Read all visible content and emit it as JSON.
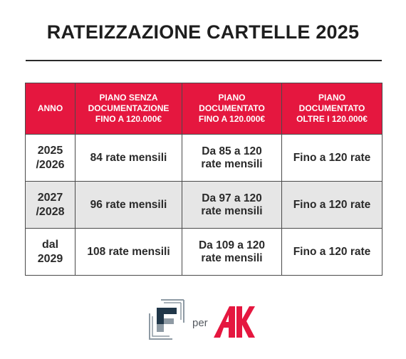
{
  "title": "RATEIZZAZIONE CARTELLE 2025",
  "colors": {
    "header_bg": "#e5173f",
    "header_text": "#ffffff",
    "alt_row_bg": "#e6e6e6",
    "text": "#2a2a2a",
    "logo_ak": "#e5173f",
    "logo_f_dark": "#213749",
    "logo_f_light": "#8e9aa4"
  },
  "table": {
    "headers": [
      [
        "ANNO"
      ],
      [
        "PIANO SENZA",
        "DOCUMENTAZIONE",
        "FINO A 120.000€"
      ],
      [
        "PIANO",
        "DOCUMENTATO",
        "FINO A 120.000€"
      ],
      [
        "PIANO",
        "DOCUMENTATO",
        "OLTRE I 120.000€"
      ]
    ],
    "rows": [
      {
        "year": [
          "2025",
          "/2026"
        ],
        "no_doc": [
          "84 rate mensili"
        ],
        "doc_to_120k": [
          "Da 85 a 120",
          "rate mensili"
        ],
        "doc_over_120k": [
          "Fino a 120 rate"
        ]
      },
      {
        "year": [
          "2027",
          "/2028"
        ],
        "no_doc": [
          "96 rate mensili"
        ],
        "doc_to_120k": [
          "Da 97 a 120",
          "rate mensili"
        ],
        "doc_over_120k": [
          "Fino a 120 rate"
        ]
      },
      {
        "year": [
          "dal",
          "2029"
        ],
        "no_doc": [
          "108 rate mensili"
        ],
        "doc_to_120k": [
          "Da 109 a 120",
          "rate mensili"
        ],
        "doc_over_120k": [
          "Fino a 120 rate"
        ]
      }
    ]
  },
  "footer": {
    "left_logo_icon": "f-logo-icon",
    "connector": "per",
    "right_logo_icon": "ak-logo-icon"
  }
}
